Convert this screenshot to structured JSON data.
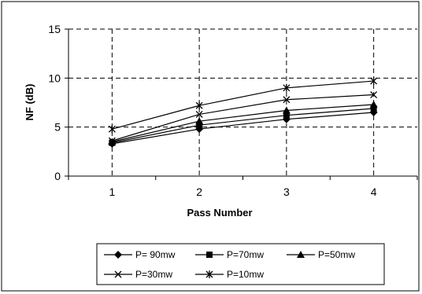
{
  "chart_data": {
    "type": "line",
    "x": [
      1,
      2,
      3,
      4
    ],
    "xlabel": "Pass Number",
    "ylabel": "NF (dB)",
    "ylim": [
      0,
      15
    ],
    "yticks": [
      0,
      5,
      10,
      15
    ],
    "grid": true,
    "legend_position": "bottom",
    "series": [
      {
        "name": "P= 90mw",
        "marker": "diamond",
        "values": [
          3.3,
          4.8,
          5.8,
          6.5
        ]
      },
      {
        "name": "P=70mw",
        "marker": "square",
        "values": [
          3.4,
          5.2,
          6.2,
          6.9
        ]
      },
      {
        "name": "P=50mw",
        "marker": "triangle",
        "values": [
          3.5,
          5.6,
          6.7,
          7.3
        ]
      },
      {
        "name": "P=30mw",
        "marker": "x",
        "values": [
          3.6,
          6.3,
          7.8,
          8.3
        ]
      },
      {
        "name": "P=10mw",
        "marker": "asterisk",
        "values": [
          4.8,
          7.2,
          9.0,
          9.7
        ]
      }
    ],
    "colors": {
      "line": "#000000",
      "grid": "#000000",
      "background": "#ffffff"
    }
  }
}
